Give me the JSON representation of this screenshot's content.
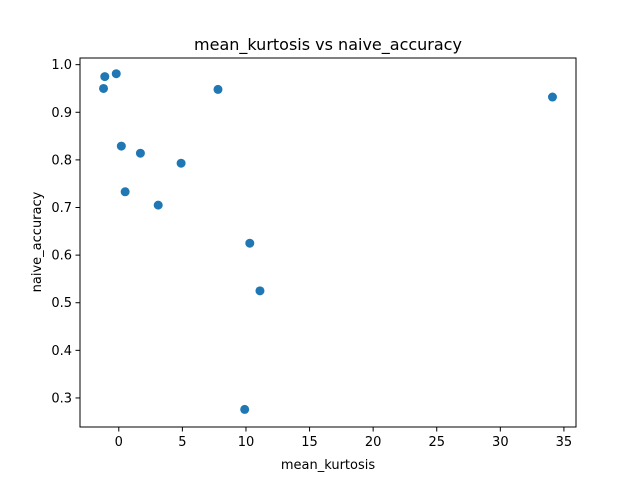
{
  "chart_data": {
    "type": "scatter",
    "title": "mean_kurtosis vs naive_accuracy",
    "xlabel": "mean_kurtosis",
    "ylabel": "naive_accuracy",
    "xlim": [
      -3.05,
      35.95
    ],
    "ylim": [
      0.239,
      1.014
    ],
    "xticks": [
      0,
      5,
      10,
      15,
      20,
      25,
      30,
      35
    ],
    "yticks": [
      0.3,
      0.4,
      0.5,
      0.6,
      0.7,
      0.8,
      0.9,
      1.0
    ],
    "xtick_labels": [
      "0",
      "5",
      "10",
      "15",
      "20",
      "25",
      "30",
      "35"
    ],
    "ytick_labels": [
      "0.3",
      "0.4",
      "0.5",
      "0.6",
      "0.7",
      "0.8",
      "0.9",
      "1.0"
    ],
    "grid": false,
    "marker_color": "#1f77b4",
    "points": [
      {
        "x": -1.1,
        "y": 0.975
      },
      {
        "x": -0.2,
        "y": 0.981
      },
      {
        "x": -1.2,
        "y": 0.95
      },
      {
        "x": 7.8,
        "y": 0.948
      },
      {
        "x": 34.1,
        "y": 0.932
      },
      {
        "x": 0.2,
        "y": 0.829
      },
      {
        "x": 1.7,
        "y": 0.814
      },
      {
        "x": 4.9,
        "y": 0.793
      },
      {
        "x": 0.5,
        "y": 0.733
      },
      {
        "x": 3.1,
        "y": 0.705
      },
      {
        "x": 10.3,
        "y": 0.625
      },
      {
        "x": 11.1,
        "y": 0.525
      },
      {
        "x": 9.9,
        "y": 0.276
      }
    ]
  }
}
